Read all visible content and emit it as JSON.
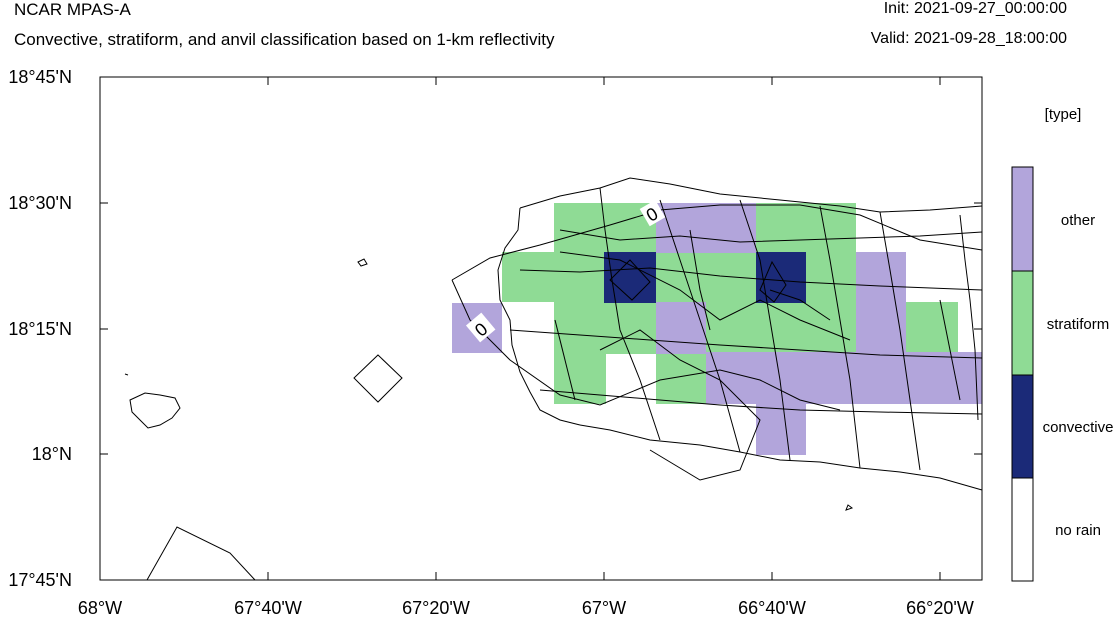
{
  "header": {
    "model": "NCAR MPAS-A",
    "subtitle": "Convective, stratiform, and anvil classification based on 1-km reflectivity",
    "init": "Init: 2021-09-27_00:00:00",
    "valid": "Valid: 2021-09-28_18:00:00"
  },
  "axes": {
    "x_ticks": [
      "68°W",
      "67°40'W",
      "67°20'W",
      "67°W",
      "66°40'W",
      "66°20'W"
    ],
    "y_ticks": [
      "18°45'N",
      "18°30'N",
      "18°15'N",
      "18°N",
      "17°45'N"
    ]
  },
  "legend": {
    "title": "[type]",
    "items": [
      {
        "label": "other",
        "color": "#b2a5db"
      },
      {
        "label": "stratiform",
        "color": "#8fdb95"
      },
      {
        "label": "convective",
        "color": "#1b2a78"
      },
      {
        "label": "no rain",
        "color": "#ffffff"
      }
    ]
  },
  "contour_labels": [
    "0",
    "0"
  ]
}
